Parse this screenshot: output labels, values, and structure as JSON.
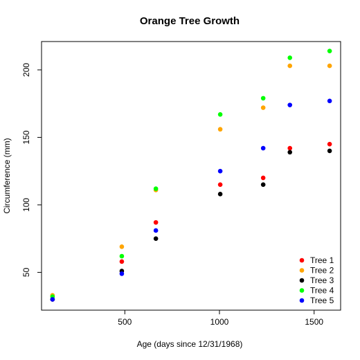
{
  "chart_data": {
    "type": "scatter",
    "title": "Orange Tree Growth",
    "xlabel": "Age (days since 12/31/1968)",
    "ylabel": "Circumference (mm)",
    "xlim": [
      60,
      1640
    ],
    "ylim": [
      22,
      221
    ],
    "xticks": [
      500,
      1000,
      1500
    ],
    "yticks": [
      50,
      100,
      150,
      200
    ],
    "x": [
      118,
      484,
      664,
      1004,
      1231,
      1372,
      1582
    ],
    "legend_position": "bottom-right",
    "grid": false,
    "series": [
      {
        "name": "Tree 1",
        "color": "#ff0000",
        "values": [
          30,
          58,
          87,
          115,
          120,
          142,
          145
        ]
      },
      {
        "name": "Tree 2",
        "color": "#ffa500",
        "values": [
          33,
          69,
          111,
          156,
          172,
          203,
          203
        ]
      },
      {
        "name": "Tree 3",
        "color": "#000000",
        "values": [
          30,
          51,
          75,
          108,
          115,
          139,
          140
        ]
      },
      {
        "name": "Tree 4",
        "color": "#00ff00",
        "values": [
          32,
          62,
          112,
          167,
          179,
          209,
          214
        ]
      },
      {
        "name": "Tree 5",
        "color": "#0000ff",
        "values": [
          30,
          49,
          81,
          125,
          142,
          174,
          177
        ]
      }
    ]
  }
}
